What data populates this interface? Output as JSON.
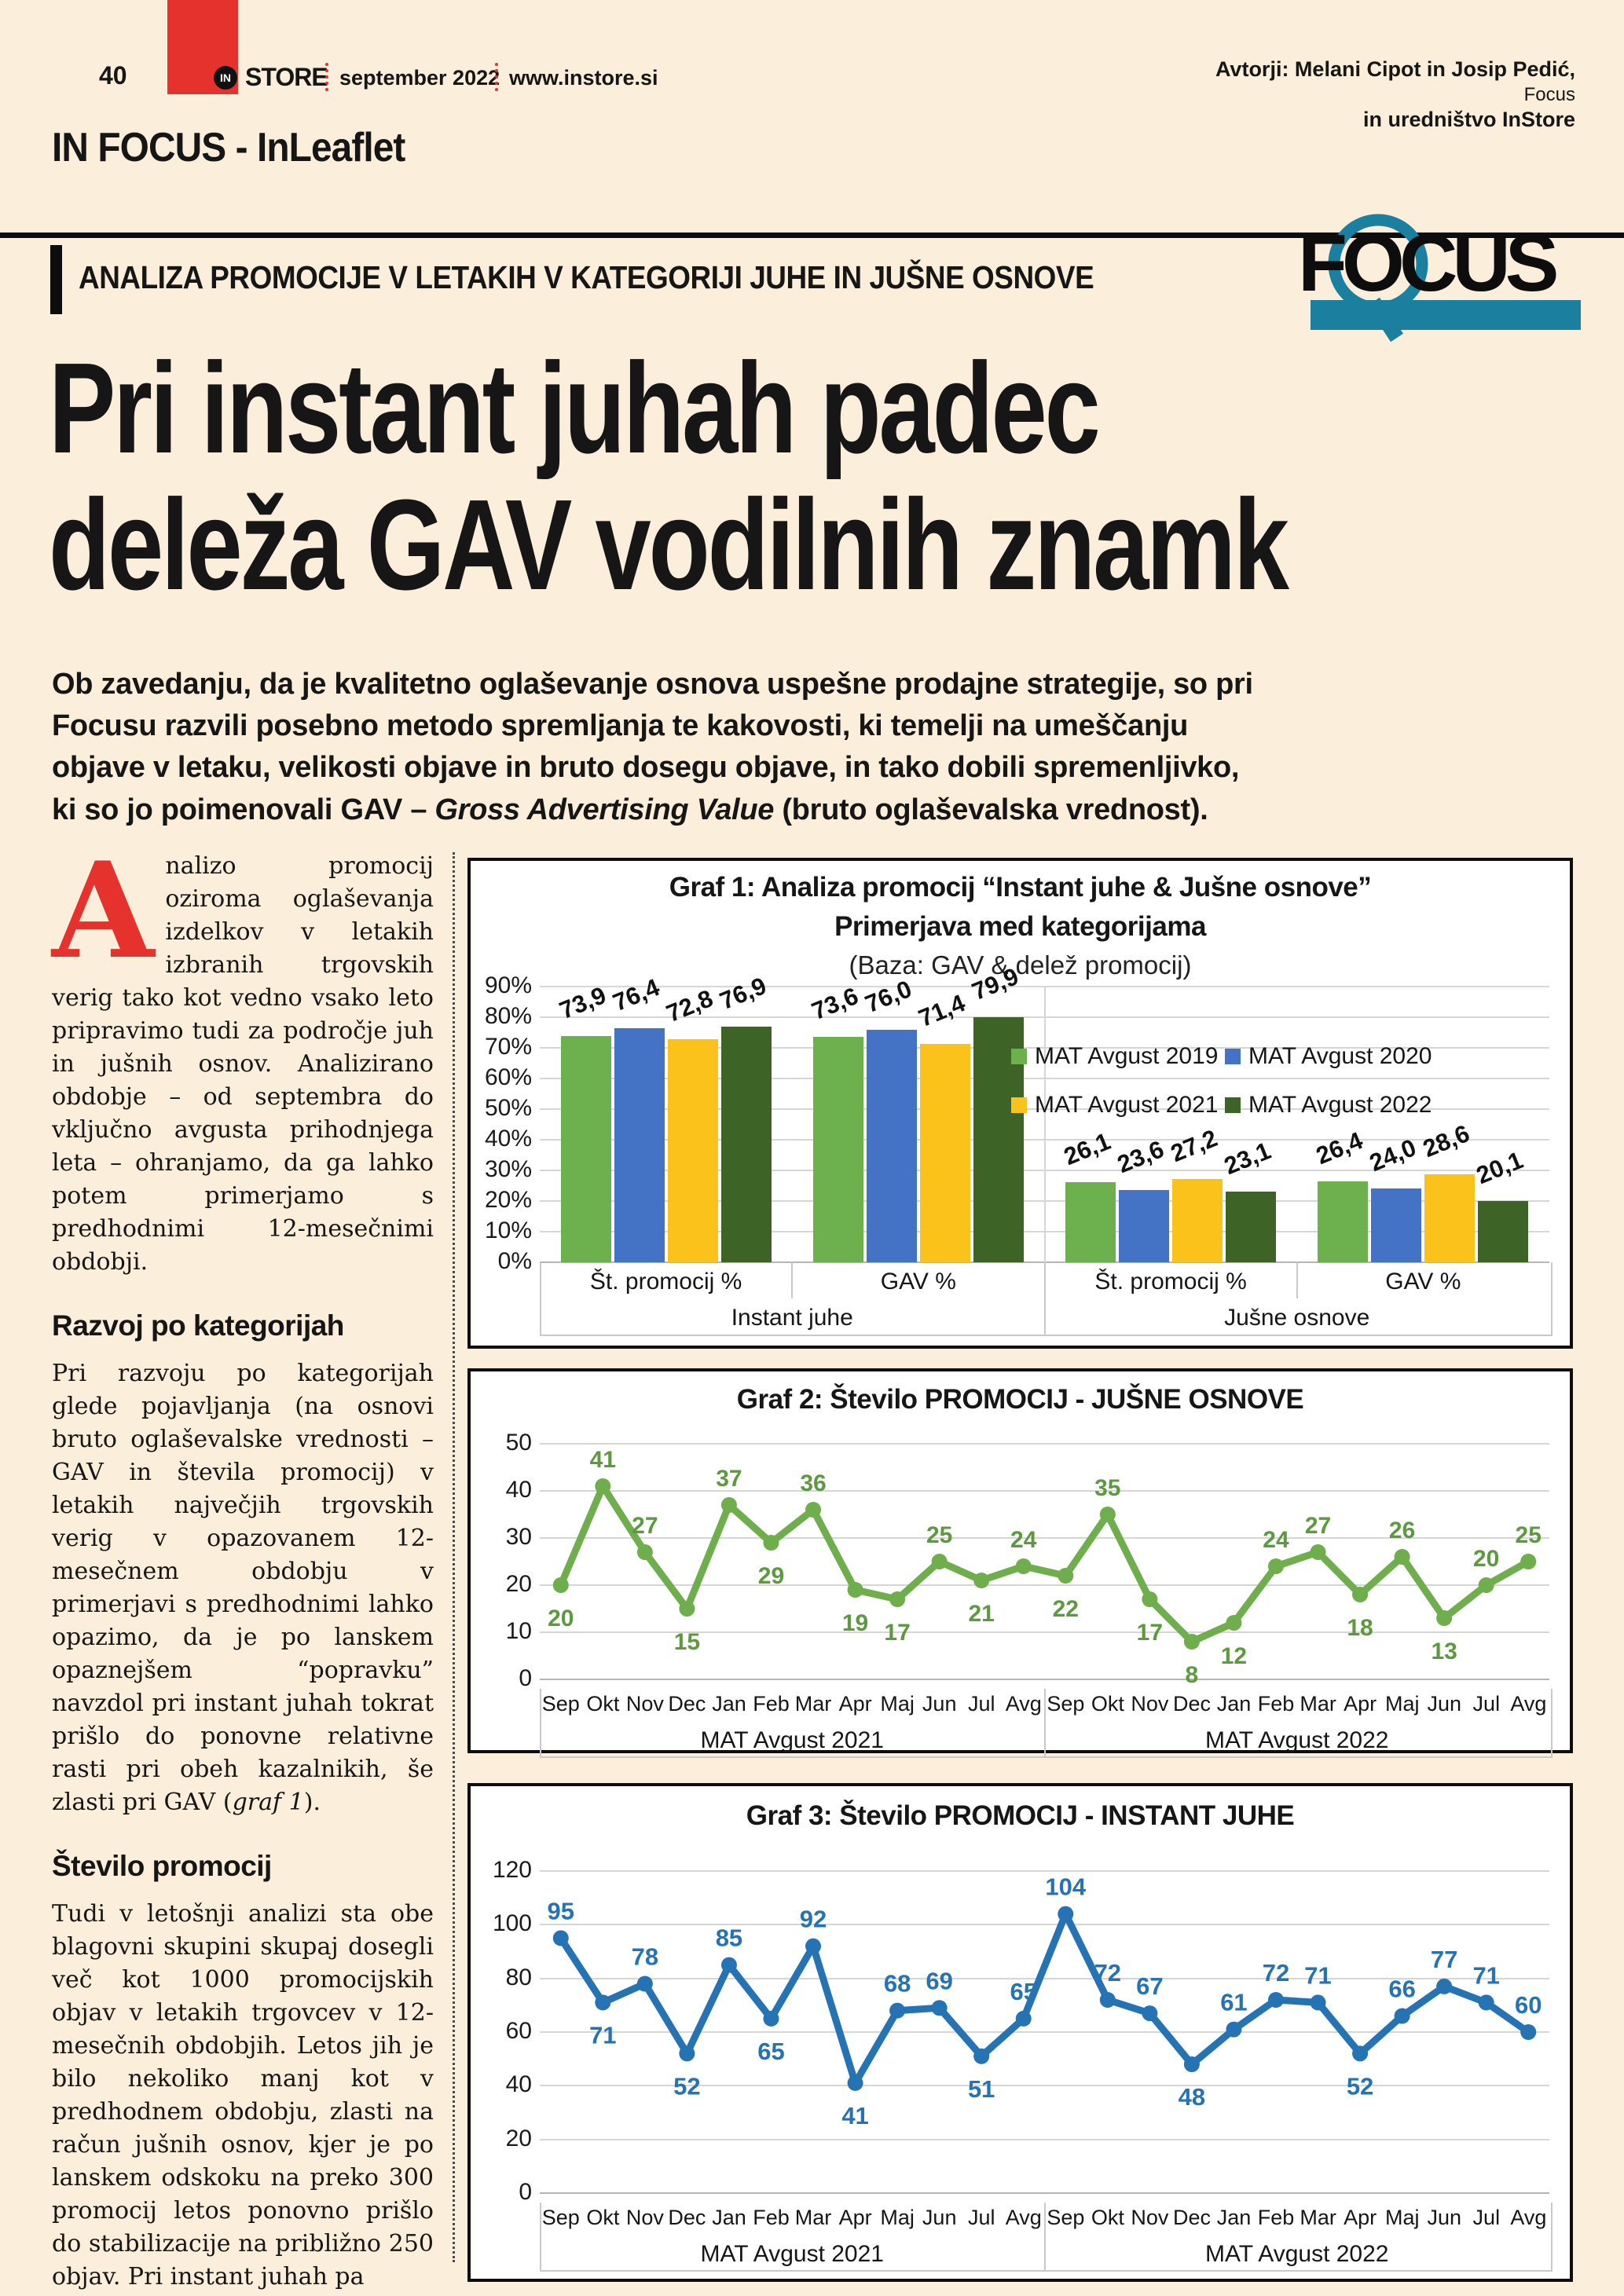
{
  "page": {
    "bg": "#fbeeda",
    "accent_red": "#e5322d",
    "accent_teal": "#1b7f9f"
  },
  "header": {
    "page_number": "40",
    "brand_badge": "IN",
    "brand": "STORE",
    "issue": "september 2022",
    "site": "www.instore.si"
  },
  "masthead": {
    "title": "IN FOCUS - InLeaflet"
  },
  "authors": {
    "line1": "Avtorji: Melani Cipot in Josip Pedić,",
    "line2": "Focus",
    "line3": "in uredništvo InStore"
  },
  "kicker": "ANALIZA PROMOCIJE V LETAKIH V KATEGORIJI JUHE IN JUŠNE OSNOVE",
  "focus_logo": {
    "text": "FOCUS",
    "teal": "#1b7f9f"
  },
  "headline": {
    "line1": "Pri instant juhah padec",
    "line2": "deleža GAV vodilnih znamk"
  },
  "intro": {
    "pre": "Ob zavedanju, da je kvalitetno oglaševanje osnova uspešne prodajne strategije, so pri Focusu razvili posebno metodo spremljanja te kakovosti, ki temelji na umeščanju objave v letaku, velikosti objave in bruto dosegu objave, in tako dobili spremenljivko, ki so jo poimenovali GAV – ",
    "it": "Gross Advertising Value",
    "post": " (bruto oglaševalska vrednost)."
  },
  "article": {
    "drop_cap": "A",
    "p1": "nalizo promocij oziroma oglaševanja izdelkov v letakih izbranih trgovskih verig tako kot vedno vsako leto pripravimo tudi za področje juh in jušnih osnov. Analizirano obdobje – od septembra do vključno avgusta prihodnjega leta – ohranjamo, da ga lahko potem primerjamo s predhodnimi 12-mesečnimi obdobji.",
    "h2": "Razvoj po kategorijah",
    "p2_pre": "Pri razvoju po kategorijah glede pojavljanja (na osnovi bruto oglaševalske vrednosti – GAV in števila promocij) v letakih največjih trgovskih verig v opazovanem 12-mesečnem obdobju v primerjavi s predhodnimi lahko opazimo, da je po lanskem opaznejšem “popravku” navzdol pri instant juhah tokrat prišlo do ponovne relativne rasti pri obeh kazalnikih, še zlasti pri GAV (",
    "p2_it": "graf 1",
    "p2_post": ").",
    "h3": "Število promocij",
    "p3": "Tudi v letošnji analizi sta obe blagovni skupini skupaj dosegli več kot 1000 promocijskih objav v letakih trgovcev v 12-mesečnih obdobjih. Letos jih je bilo nekoliko manj kot v predhodnem obdobju, zlasti na račun jušnih osnov, kjer je po lanskem odskoku na preko 300 promocij letos ponovno prišlo do stabilizacije na približno 250 objav. Pri instant juhah pa"
  },
  "chart_data": [
    {
      "type": "bar",
      "title": "Graf 1: Analiza promocij “Instant juhe & Jušne osnove”",
      "subtitle": "Primerjava  med kategorijama",
      "baseline": "(Baza: GAV & delež promocij)",
      "group_labels": [
        "Instant juhe",
        "Jušne osnove"
      ],
      "categories": [
        "Št. promocij %",
        "GAV %",
        "Št. promocij %",
        "GAV %"
      ],
      "series": [
        {
          "name": "MAT Avgust 2019",
          "color": "#6cb14e",
          "values": [
            73.9,
            73.6,
            26.1,
            26.4
          ],
          "labels": [
            "73,9",
            "73,6",
            "26,1",
            "26,4"
          ]
        },
        {
          "name": "MAT Avgust 2020",
          "color": "#4472c4",
          "values": [
            76.4,
            76.0,
            23.6,
            24.0
          ],
          "labels": [
            "76,4",
            "76,0",
            "23,6",
            "24,0"
          ]
        },
        {
          "name": "MAT Avgust 2021",
          "color": "#fcc21c",
          "values": [
            72.8,
            71.4,
            27.2,
            28.6
          ],
          "labels": [
            "72,8",
            "71,4",
            "27,2",
            "28,6"
          ]
        },
        {
          "name": "MAT Avgust 2022",
          "color": "#3d6327",
          "values": [
            76.9,
            79.9,
            23.1,
            20.1
          ],
          "labels": [
            "76,9",
            "79,9",
            "23,1",
            "20,1"
          ]
        }
      ],
      "ylim": [
        0,
        90
      ],
      "ytick_step": 10,
      "ytick_suffix": "%",
      "grid": true,
      "legend_position": "inside-right"
    },
    {
      "type": "line",
      "title": "Graf 2: Število PROMOCIJ - JUŠNE OSNOVE",
      "color": "#6fae4c",
      "label_color": "#5d9a3f",
      "months": [
        "Sep",
        "Okt",
        "Nov",
        "Dec",
        "Jan",
        "Feb",
        "Mar",
        "Apr",
        "Maj",
        "Jun",
        "Jul",
        "Avg"
      ],
      "group_labels": [
        "MAT Avgust 2021",
        "MAT Avgust 2022"
      ],
      "values": [
        20,
        41,
        27,
        15,
        37,
        29,
        36,
        19,
        17,
        25,
        21,
        24,
        22,
        35,
        17,
        8,
        12,
        24,
        27,
        18,
        26,
        13,
        20,
        25
      ],
      "label_side": [
        "b",
        "a",
        "a",
        "b",
        "a",
        "b",
        "a",
        "b",
        "b",
        "a",
        "b",
        "a",
        "b",
        "a",
        "b",
        "b",
        "b",
        "a",
        "a",
        "b",
        "a",
        "b",
        "a",
        "a"
      ],
      "ylim": [
        0,
        50
      ],
      "ytick_step": 10,
      "grid": true
    },
    {
      "type": "line",
      "title": "Graf 3: Število PROMOCIJ - INSTANT JUHE",
      "color": "#2673b4",
      "label_color": "#2673b4",
      "months": [
        "Sep",
        "Okt",
        "Nov",
        "Dec",
        "Jan",
        "Feb",
        "Mar",
        "Apr",
        "Maj",
        "Jun",
        "Jul",
        "Avg"
      ],
      "group_labels": [
        "MAT Avgust 2021",
        "MAT Avgust 2022"
      ],
      "values": [
        95,
        71,
        78,
        52,
        85,
        65,
        92,
        41,
        68,
        69,
        51,
        65,
        104,
        72,
        67,
        48,
        61,
        72,
        71,
        52,
        66,
        77,
        71,
        60
      ],
      "label_side": [
        "a",
        "b",
        "a",
        "b",
        "a",
        "b",
        "a",
        "b",
        "a",
        "a",
        "b",
        "a",
        "a",
        "a",
        "a",
        "b",
        "a",
        "a",
        "a",
        "b",
        "a",
        "a",
        "a",
        "a"
      ],
      "ylim": [
        0,
        120
      ],
      "ytick_step": 20,
      "grid": true
    }
  ]
}
